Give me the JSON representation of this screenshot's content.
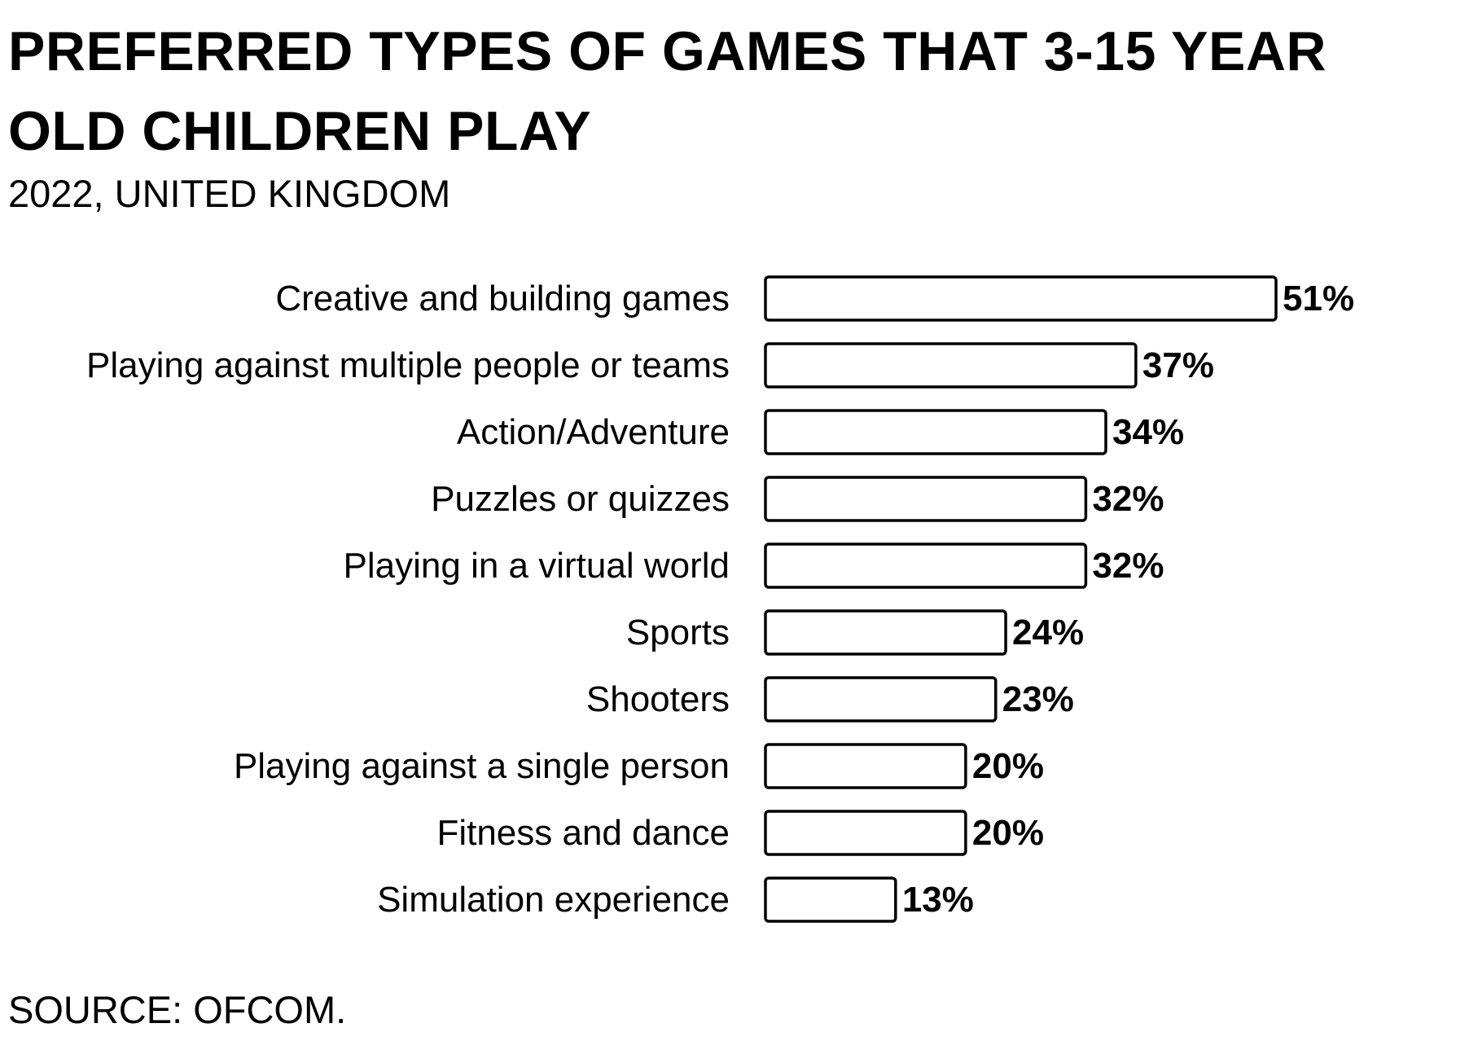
{
  "header": {
    "title": "PREFERRED TYPES OF GAMES THAT 3-15 YEAR OLD CHILDREN PLAY",
    "subtitle": "2022, UNITED KINGDOM"
  },
  "footer": {
    "source": "SOURCE: OFCOM."
  },
  "colors": {
    "bar_fill": "#ffffff",
    "bar_stroke": "#000000",
    "text": "#000000"
  },
  "chart_data": {
    "type": "bar",
    "orientation": "horizontal",
    "title": "PREFERRED TYPES OF GAMES THAT 3-15 YEAR OLD CHILDREN PLAY",
    "subtitle": "2022, UNITED KINGDOM",
    "xlabel": "",
    "ylabel": "",
    "xlim": [
      0,
      51
    ],
    "grid": false,
    "legend": "none",
    "unit": "%",
    "categories": [
      "Creative and building games",
      "Playing against multiple people or teams",
      "Action/Adventure",
      "Puzzles or quizzes",
      "Playing in a virtual world",
      "Sports",
      "Shooters",
      "Playing against a single person",
      "Fitness and dance",
      "Simulation experience"
    ],
    "values": [
      51,
      37,
      34,
      32,
      32,
      24,
      23,
      20,
      20,
      13
    ],
    "value_labels": [
      "51%",
      "37%",
      "34%",
      "32%",
      "32%",
      "24%",
      "23%",
      "20%",
      "20%",
      "13%"
    ]
  }
}
